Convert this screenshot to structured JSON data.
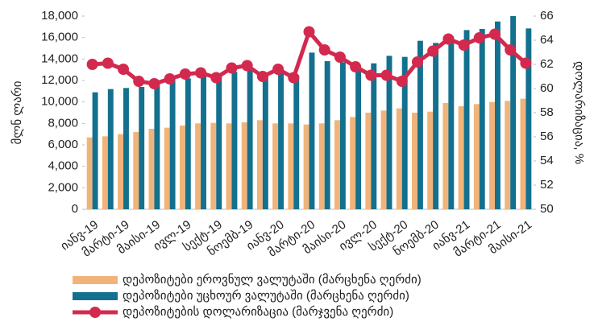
{
  "chart_data": {
    "type": "bar-line",
    "y_label": "მლნ ლარი",
    "y2_label": "დოლარიზაცია, %",
    "categories": [
      "იანვ-19",
      null,
      "მარტი-19",
      null,
      "მაისი-19",
      null,
      "ივლ-19",
      null,
      "სექტ-19",
      null,
      "ნოემბ-19",
      null,
      "იანვ-20",
      null,
      "მარტი-20",
      null,
      "მაისი-20",
      null,
      "ივლ-20",
      null,
      "სექტ-20",
      null,
      "ნოემბ-20",
      null,
      "იანვ-21",
      null,
      "მარტი-21",
      null,
      "მაისი-21"
    ],
    "series": [
      {
        "name": "დეპოზიტები ეროვნულ ვალუტაში (მარცხენა ღერძი)",
        "color": "#f0b47a",
        "kind": "bar",
        "values": [
          6700,
          6800,
          7000,
          7200,
          7500,
          7600,
          7800,
          8000,
          8050,
          8000,
          8100,
          8300,
          8000,
          8000,
          7900,
          8000,
          8300,
          8600,
          9000,
          9200,
          9400,
          9000,
          9100,
          9900,
          9600,
          9800,
          10000,
          10100,
          10300
        ]
      },
      {
        "name": "დეპოზიტები უცხოურ ვალუტაში (მარცხენა ღერძი)",
        "color": "#13708e",
        "kind": "bar",
        "values": [
          10900,
          11200,
          11300,
          11400,
          11600,
          12000,
          12200,
          12400,
          12300,
          12800,
          13000,
          12600,
          12800,
          12500,
          14600,
          13800,
          13700,
          13300,
          13600,
          14300,
          14200,
          15700,
          15500,
          16100,
          16700,
          16800,
          17500,
          18000,
          16850
        ]
      },
      {
        "name": "დეპოზიტების დოლარიზაცია (მარჯვენა ღერძი)",
        "color": "#d3294e",
        "kind": "line",
        "axis": "y2",
        "values": [
          62.0,
          62.1,
          61.6,
          60.6,
          60.4,
          60.8,
          61.2,
          61.3,
          60.9,
          61.7,
          61.9,
          61.0,
          61.6,
          60.9,
          64.7,
          63.2,
          62.6,
          61.8,
          61.1,
          61.1,
          60.6,
          62.2,
          63.1,
          64.1,
          63.6,
          64.2,
          64.5,
          63.2,
          62.1
        ]
      }
    ],
    "ylim": [
      0,
      18000
    ],
    "yticks": [
      0,
      {
        "value": 2000,
        "label": "2,000"
      },
      {
        "value": 4000,
        "label": "4,000"
      },
      {
        "value": 6000,
        "label": "6,000"
      },
      {
        "value": 8000,
        "label": "8,000"
      },
      {
        "value": 10000,
        "label": "10,000"
      },
      {
        "value": 12000,
        "label": "12,000"
      },
      {
        "value": 14000,
        "label": "14,000"
      },
      {
        "value": 16000,
        "label": "16,000"
      },
      {
        "value": 18000,
        "label": "18,000"
      }
    ],
    "y2lim": [
      50,
      66
    ],
    "y2ticks": [
      50,
      52,
      54,
      56,
      58,
      60,
      62,
      64,
      66
    ]
  }
}
